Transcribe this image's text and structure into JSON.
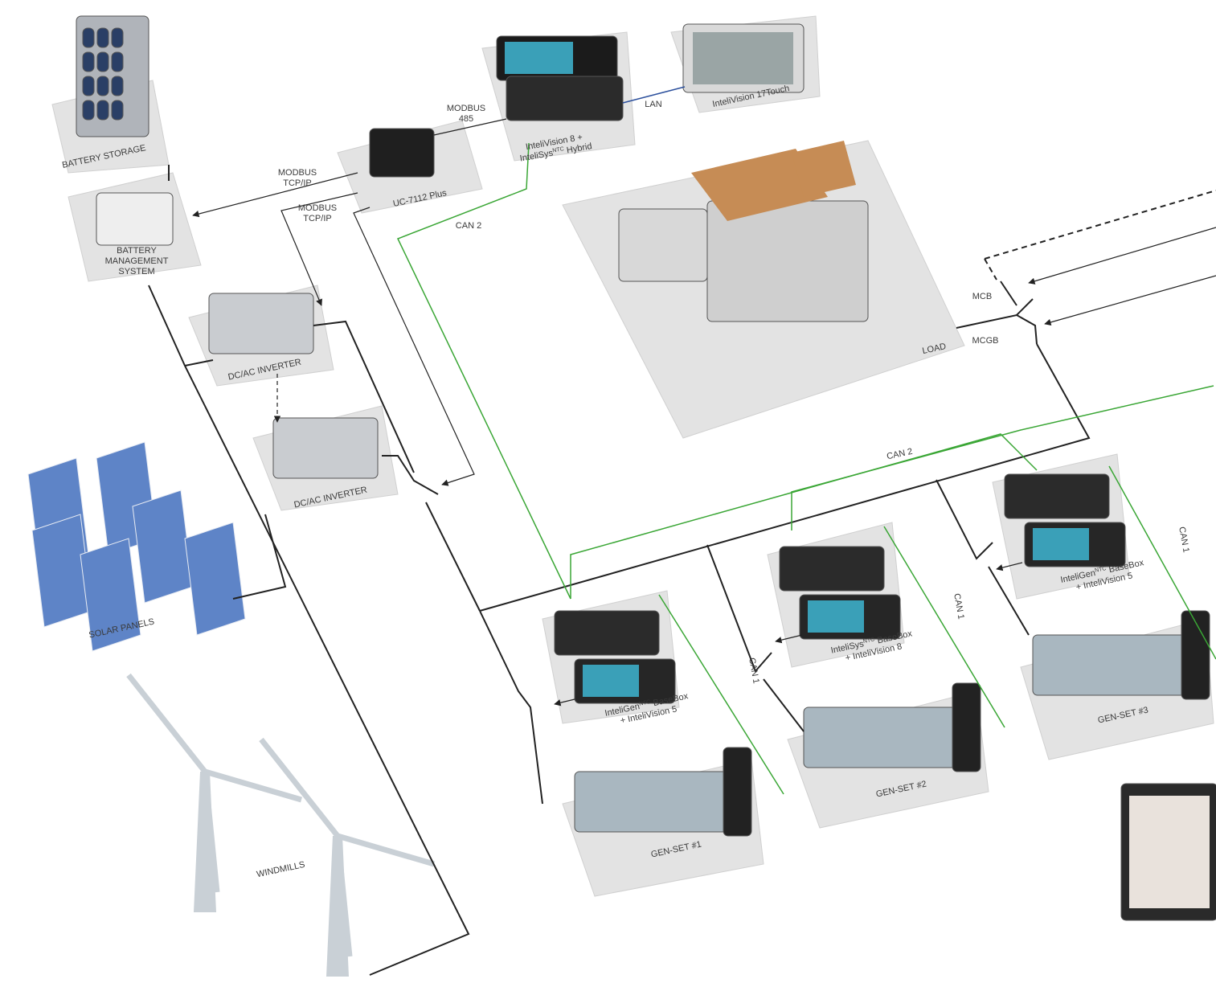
{
  "nodes": [
    {
      "label": [
        [
          "BATTERY STORAGE"
        ]
      ]
    },
    {
      "label": [
        [
          "BATTERY"
        ],
        [
          "MANAGEMENT"
        ],
        [
          "SYSTEM"
        ]
      ]
    },
    {
      "label": [
        [
          "UC-7112 Plus"
        ]
      ]
    },
    {
      "label": [
        [
          "InteliVision 8 +"
        ],
        [
          "InteliSys",
          "NTC",
          " Hybrid"
        ]
      ]
    },
    {
      "label": [
        [
          "InteliVision 17Touch"
        ]
      ]
    },
    {
      "label": [
        [
          "LOAD"
        ]
      ]
    },
    {
      "label": [
        [
          "DC/AC INVERTER"
        ]
      ]
    },
    {
      "label": [
        [
          "DC/AC INVERTER"
        ]
      ]
    },
    {
      "label": [
        [
          "SOLAR PANELS"
        ]
      ]
    },
    {
      "label": [
        [
          "WINDMILLS"
        ]
      ]
    },
    {
      "label": [
        [
          "InteliGen",
          "NTC",
          " BaseBox"
        ],
        [
          "+ InteliVision 5"
        ]
      ]
    },
    {
      "label": [
        [
          "InteliSys",
          "NTC",
          " BaseBox"
        ],
        [
          "+ InteliVision 8"
        ]
      ]
    },
    {
      "label": [
        [
          "InteliGen",
          "NTC",
          " BaseBox"
        ],
        [
          "+ InteliVision 5"
        ]
      ]
    },
    {
      "label": [
        [
          "GEN-SET #1"
        ]
      ]
    },
    {
      "label": [
        [
          "GEN-SET #2"
        ]
      ]
    },
    {
      "label": [
        [
          "GEN-SET #3"
        ]
      ]
    }
  ],
  "links": [
    {
      "label": [
        [
          "MODBUS"
        ],
        [
          "TCP/IP"
        ]
      ]
    },
    {
      "label": [
        [
          "MODBUS"
        ],
        [
          "TCP/IP"
        ]
      ]
    },
    {
      "label": [
        [
          "MODBUS"
        ],
        [
          "485"
        ]
      ]
    },
    {
      "label": [
        [
          "LAN"
        ]
      ]
    },
    {
      "label": [
        [
          "CAN 2"
        ]
      ]
    },
    {
      "label": [
        [
          "MCB"
        ]
      ]
    },
    {
      "label": [
        [
          "MCGB"
        ]
      ]
    },
    {
      "label": [
        [
          "CAN 2"
        ]
      ]
    },
    {
      "label": [
        [
          "CAN 1"
        ]
      ]
    },
    {
      "label": [
        [
          "CAN 1"
        ]
      ]
    },
    {
      "label": [
        [
          "CAN 1"
        ]
      ]
    }
  ]
}
